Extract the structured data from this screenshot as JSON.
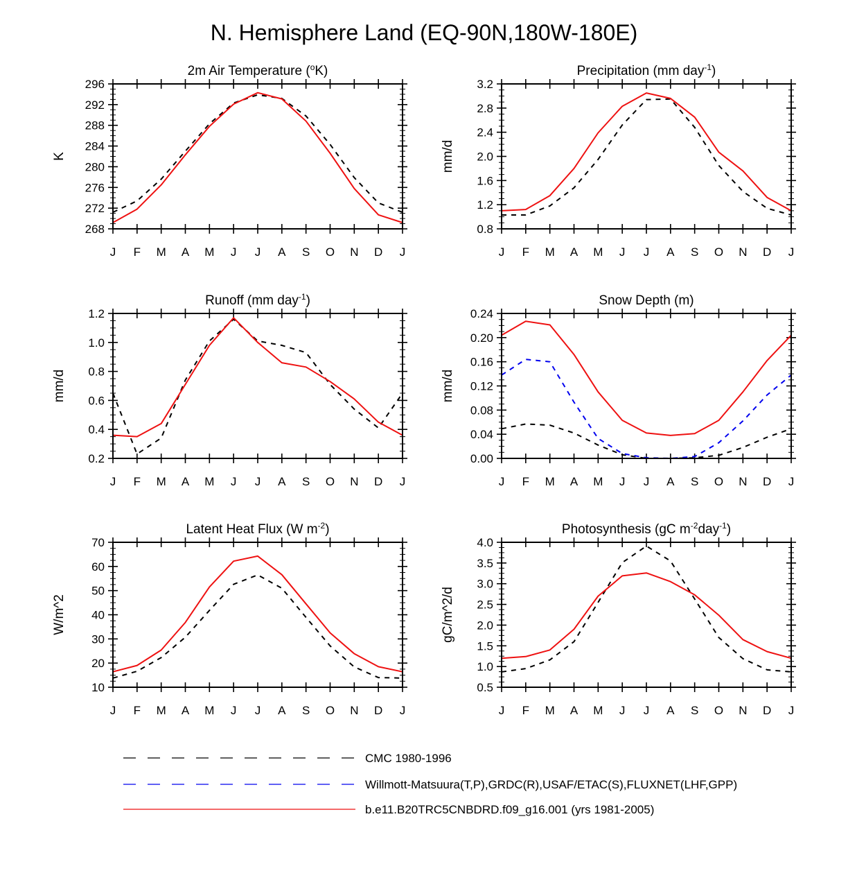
{
  "title": "N. Hemisphere Land (EQ-90N,180W-180E)",
  "colors": {
    "CMC": "#000000",
    "obs": "#0000ee",
    "model": "#ee1111"
  },
  "legend": {
    "placement": "bottom-center",
    "entries": [
      {
        "key": "CMC",
        "label": "CMC 1980-1996",
        "style": "dashed"
      },
      {
        "key": "obs",
        "label": "Willmott-Matsuura(T,P),GRDC(R),USAF/ETAC(S),FLUXNET(LHF,GPP)",
        "style": "dashed"
      },
      {
        "key": "model",
        "label": "b.e11.B20TRC5CNBDRD.f09_g16.001 (yrs 1981-2005)",
        "style": "solid"
      }
    ]
  },
  "chart_data": [
    {
      "type": "line",
      "title": {
        "pre": "2m Air Temperature (",
        "sup": "o",
        "post": "K)"
      },
      "ylabel": "K",
      "categories": [
        "J",
        "F",
        "M",
        "A",
        "M",
        "J",
        "J",
        "A",
        "S",
        "O",
        "N",
        "D",
        "J"
      ],
      "ylim": [
        268,
        296
      ],
      "yticks": [
        268,
        272,
        276,
        280,
        284,
        288,
        292,
        296
      ],
      "ytick_labels": [
        "268",
        "272",
        "276",
        "280",
        "284",
        "288",
        "292",
        "296"
      ],
      "series": [
        {
          "key": "CMC",
          "values": [
            271.2,
            273.4,
            277.6,
            283.0,
            288.3,
            292.3,
            293.9,
            293.2,
            289.8,
            284.3,
            277.9,
            273.0,
            271.2
          ]
        },
        {
          "key": "model",
          "values": [
            269.2,
            271.8,
            276.5,
            282.3,
            287.8,
            292.1,
            294.3,
            293.1,
            288.8,
            282.6,
            275.8,
            270.7,
            269.2
          ]
        }
      ]
    },
    {
      "type": "line",
      "title": {
        "pre": "Precipitation (mm day",
        "sup": "-1",
        "post": ")"
      },
      "ylabel": "mm/d",
      "categories": [
        "J",
        "F",
        "M",
        "A",
        "M",
        "J",
        "J",
        "A",
        "S",
        "O",
        "N",
        "D",
        "J"
      ],
      "ylim": [
        0.8,
        3.2
      ],
      "yticks": [
        0.8,
        1.2,
        1.6,
        2.0,
        2.4,
        2.8,
        3.2
      ],
      "ytick_labels": [
        "0.8",
        "1.2",
        "1.6",
        "2.0",
        "2.4",
        "2.8",
        "3.2"
      ],
      "series": [
        {
          "key": "CMC",
          "values": [
            1.03,
            1.03,
            1.18,
            1.48,
            1.95,
            2.52,
            2.94,
            2.95,
            2.48,
            1.85,
            1.42,
            1.14,
            1.03
          ]
        },
        {
          "key": "model",
          "values": [
            1.1,
            1.12,
            1.35,
            1.8,
            2.39,
            2.83,
            3.05,
            2.96,
            2.65,
            2.07,
            1.76,
            1.32,
            1.1
          ]
        }
      ]
    },
    {
      "type": "line",
      "title": {
        "pre": "Runoff (mm day",
        "sup": "-1",
        "post": ")"
      },
      "ylabel": "mm/d",
      "categories": [
        "J",
        "F",
        "M",
        "A",
        "M",
        "J",
        "J",
        "A",
        "S",
        "O",
        "N",
        "D",
        "J"
      ],
      "ylim": [
        0.2,
        1.2
      ],
      "yticks": [
        0.2,
        0.4,
        0.6,
        0.8,
        1.0,
        1.2
      ],
      "ytick_labels": [
        "0.2",
        "0.4",
        "0.6",
        "0.8",
        "1.0",
        "1.2"
      ],
      "series": [
        {
          "key": "CMC",
          "values": [
            0.65,
            0.23,
            0.34,
            0.74,
            1.01,
            1.16,
            1.01,
            0.98,
            0.93,
            0.71,
            0.54,
            0.41,
            0.65
          ]
        },
        {
          "key": "model",
          "values": [
            0.36,
            0.35,
            0.44,
            0.71,
            0.98,
            1.17,
            1.0,
            0.86,
            0.83,
            0.73,
            0.61,
            0.45,
            0.36
          ]
        }
      ]
    },
    {
      "type": "line",
      "title": {
        "pre": "Snow Depth (m)",
        "sup": "",
        "post": ""
      },
      "ylabel": "mm/d",
      "categories": [
        "J",
        "F",
        "M",
        "A",
        "M",
        "J",
        "J",
        "A",
        "S",
        "O",
        "N",
        "D",
        "J"
      ],
      "ylim": [
        0.0,
        0.24
      ],
      "yticks": [
        0.0,
        0.04,
        0.08,
        0.12,
        0.16,
        0.2,
        0.24
      ],
      "ytick_labels": [
        "0.00",
        "0.04",
        "0.08",
        "0.12",
        "0.16",
        "0.20",
        "0.24"
      ],
      "series": [
        {
          "key": "CMC",
          "values": [
            0.049,
            0.057,
            0.055,
            0.042,
            0.022,
            0.006,
            0.0,
            0.0,
            0.001,
            0.005,
            0.018,
            0.035,
            0.049
          ]
        },
        {
          "key": "obs",
          "values": [
            0.138,
            0.164,
            0.16,
            0.093,
            0.033,
            0.008,
            0.001,
            0.0,
            0.003,
            0.026,
            0.062,
            0.105,
            0.138
          ]
        },
        {
          "key": "model",
          "values": [
            0.204,
            0.227,
            0.221,
            0.172,
            0.11,
            0.063,
            0.042,
            0.038,
            0.041,
            0.063,
            0.11,
            0.162,
            0.204
          ]
        }
      ]
    },
    {
      "type": "line",
      "title": {
        "pre": "Latent Heat Flux (W m",
        "sup": "-2",
        "post": ")"
      },
      "ylabel": "W/m^2",
      "categories": [
        "J",
        "F",
        "M",
        "A",
        "M",
        "J",
        "J",
        "A",
        "S",
        "O",
        "N",
        "D",
        "J"
      ],
      "ylim": [
        10,
        70
      ],
      "yticks": [
        10,
        20,
        30,
        40,
        50,
        60,
        70
      ],
      "ytick_labels": [
        "10",
        "20",
        "30",
        "40",
        "50",
        "60",
        "70"
      ],
      "series": [
        {
          "key": "CMC",
          "values": [
            13.8,
            16.6,
            22.3,
            30.7,
            41.8,
            52.6,
            56.5,
            51.0,
            38.9,
            27.1,
            18.4,
            14.0,
            13.8
          ]
        },
        {
          "key": "model",
          "values": [
            16.4,
            19.0,
            25.4,
            36.8,
            51.5,
            62.2,
            64.3,
            56.6,
            44.5,
            32.5,
            23.9,
            18.5,
            16.4
          ]
        }
      ]
    },
    {
      "type": "line",
      "title": {
        "pre": "Photosynthesis (gC m",
        "sup": "-2",
        "mid": "day",
        "sup2": "-1",
        "post": ")"
      },
      "ylabel": "gC/m^2/d",
      "categories": [
        "J",
        "F",
        "M",
        "A",
        "M",
        "J",
        "J",
        "A",
        "S",
        "O",
        "N",
        "D",
        "J"
      ],
      "ylim": [
        0.5,
        4.0
      ],
      "yticks": [
        0.5,
        1.0,
        1.5,
        2.0,
        2.5,
        3.0,
        3.5,
        4.0
      ],
      "ytick_labels": [
        "0.5",
        "1.0",
        "1.5",
        "2.0",
        "2.5",
        "3.0",
        "3.5",
        "4.0"
      ],
      "series": [
        {
          "key": "CMC",
          "values": [
            0.87,
            0.95,
            1.16,
            1.6,
            2.55,
            3.51,
            3.91,
            3.55,
            2.63,
            1.7,
            1.19,
            0.92,
            0.87
          ]
        },
        {
          "key": "model",
          "values": [
            1.2,
            1.24,
            1.4,
            1.9,
            2.7,
            3.19,
            3.26,
            3.05,
            2.73,
            2.24,
            1.65,
            1.36,
            1.2
          ]
        }
      ]
    }
  ]
}
